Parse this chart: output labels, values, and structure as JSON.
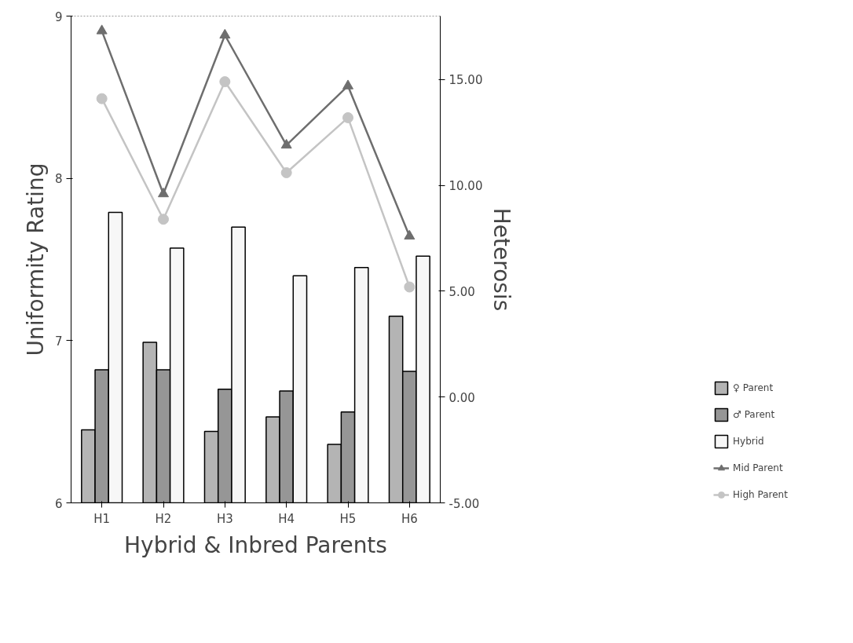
{
  "chart_data": {
    "type": "bar",
    "xlabel": "Hybrid & Inbred Parents",
    "ylabel": "Uniformity Rating",
    "y2label": "Heterosis",
    "categories": [
      "H1",
      "H2",
      "H3",
      "H4",
      "H5",
      "H6"
    ],
    "ylim": [
      6,
      9
    ],
    "yticks": [
      6,
      7,
      8,
      9
    ],
    "y2lim": [
      -5,
      18
    ],
    "y2ticks": [
      {
        "value": -5,
        "label": "-5.00"
      },
      {
        "value": 0,
        "label": "0.00"
      },
      {
        "value": 5,
        "label": "5.00"
      },
      {
        "value": 10,
        "label": "10.00"
      },
      {
        "value": 15,
        "label": "15.00"
      }
    ],
    "legend": "bottom right",
    "series": [
      {
        "name": "♀ Parent",
        "color": "#b4b4b4",
        "values": [
          6.45,
          6.99,
          6.44,
          6.53,
          6.36,
          7.15
        ]
      },
      {
        "name": "♂ Parent",
        "color": "#969696",
        "values": [
          6.82,
          6.82,
          6.7,
          6.69,
          6.56,
          6.81
        ]
      },
      {
        "name": "Hybrid",
        "color": "#f7f7f7",
        "values": [
          7.79,
          7.57,
          7.7,
          7.4,
          7.45,
          7.52
        ]
      },
      {
        "name": "Mid Parent",
        "type": "line",
        "axis": "y2",
        "marker": "triangle",
        "color": "#6e6e6e",
        "values": [
          17.3,
          9.6,
          17.1,
          11.9,
          14.7,
          7.6
        ]
      },
      {
        "name": "High Parent",
        "type": "line",
        "axis": "y2",
        "marker": "circle",
        "color": "#c4c4c4",
        "values": [
          14.1,
          8.4,
          14.9,
          10.6,
          13.2,
          5.2
        ]
      }
    ]
  }
}
